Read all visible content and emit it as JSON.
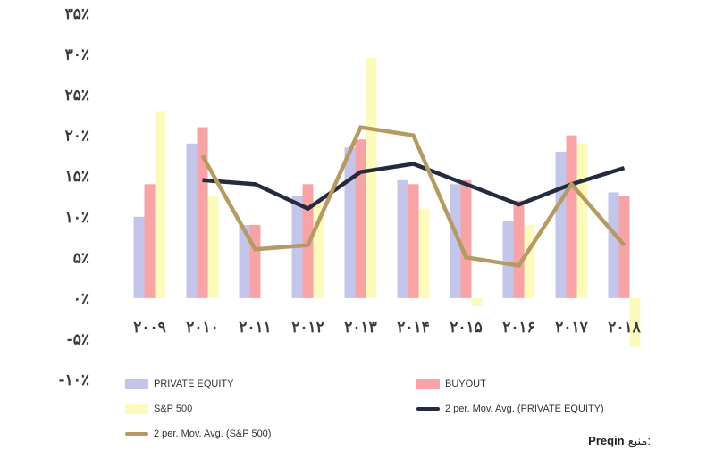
{
  "chart_data": {
    "type": "bar",
    "categories": [
      "۲۰۰۹",
      "۲۰۱۰",
      "۲۰۱۱",
      "۲۰۱۲",
      "۲۰۱۳",
      "۲۰۱۴",
      "۲۰۱۵",
      "۲۰۱۶",
      "۲۰۱۷",
      "۲۰۱۸"
    ],
    "ylim": [
      -10,
      35
    ],
    "yticks": [
      35,
      30,
      25,
      20,
      15,
      10,
      5,
      0,
      -5,
      -10
    ],
    "ytick_labels": [
      "۳۵٪",
      "۳۰٪",
      "۲۵٪",
      "۲۰٪",
      "۱۵٪",
      "۱۰٪",
      "۵٪",
      "۰٪",
      "-۵٪",
      "-۱۰٪"
    ],
    "series": [
      {
        "name": "PRIVATE EQUITY",
        "kind": "bar",
        "color": "#c3c5eb",
        "values": [
          10,
          19,
          9,
          12.5,
          18.5,
          14.5,
          14,
          9.5,
          18,
          13
        ]
      },
      {
        "name": "BUYOUT",
        "kind": "bar",
        "color": "#f8a3a6",
        "values": [
          14,
          21,
          9,
          14,
          19.5,
          14,
          14.5,
          12,
          20,
          12.5
        ]
      },
      {
        "name": "S&P 500",
        "kind": "bar",
        "color": "#fdfbbc",
        "values": [
          23,
          12.5,
          0,
          12,
          29.5,
          11,
          -1,
          9,
          19,
          -6
        ]
      },
      {
        "name": "2 per. Mov. Avg. (PRIVATE EQUITY)",
        "kind": "line",
        "color": "#252b3f",
        "values": [
          null,
          14.5,
          14,
          11,
          15.5,
          16.5,
          14,
          11.5,
          14,
          16
        ]
      },
      {
        "name": "2 per. Mov. Avg. (S&P 500)",
        "kind": "line",
        "color": "#b59a64",
        "values": [
          null,
          17.5,
          6,
          6.5,
          21,
          20,
          5,
          4,
          14,
          6.5
        ]
      }
    ],
    "legend": [
      {
        "label": "PRIVATE EQUITY",
        "kind": "box",
        "color": "#c3c5eb"
      },
      {
        "label": "BUYOUT",
        "kind": "box",
        "color": "#f8a3a6"
      },
      {
        "label": "S&P 500",
        "kind": "box",
        "color": "#fdfbbc"
      },
      {
        "label": "2 per. Mov. Avg. (PRIVATE EQUITY)",
        "kind": "line",
        "color": "#252b3f"
      },
      {
        "label": "2 per. Mov. Avg. (S&P 500)",
        "kind": "line",
        "color": "#b59a64"
      }
    ]
  },
  "source": {
    "label": "منبع:",
    "value": "Preqin"
  }
}
